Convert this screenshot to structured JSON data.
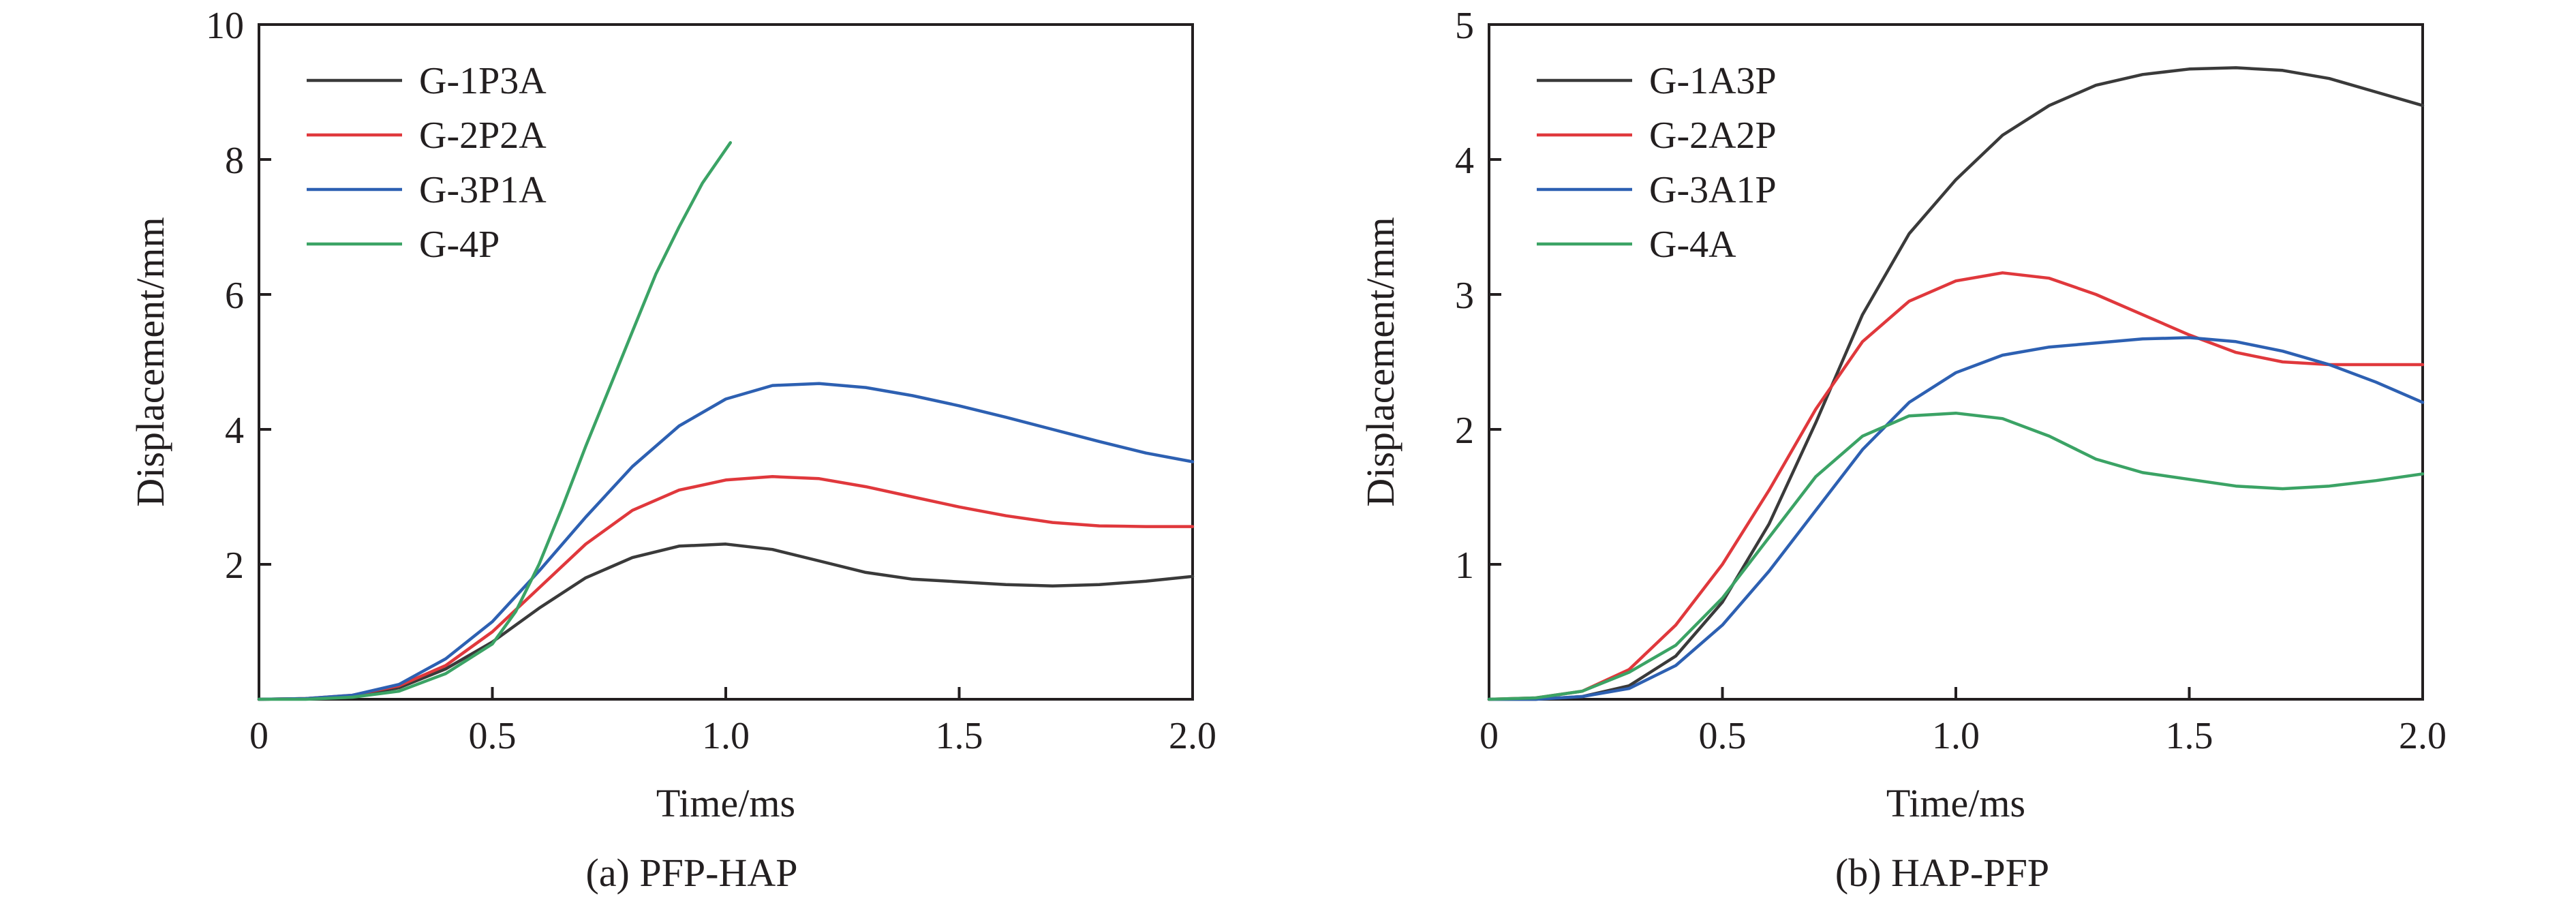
{
  "chart_data": [
    {
      "type": "line",
      "caption": "(a) PFP-HAP",
      "xlabel": "Time/ms",
      "ylabel": "Displacement/mm",
      "xlim": [
        0,
        2.0
      ],
      "ylim": [
        0,
        10
      ],
      "xticks": [
        "0",
        "0.5",
        "1.0",
        "1.5",
        "2.0"
      ],
      "yticks": [
        "2",
        "4",
        "6",
        "8",
        "10"
      ],
      "xtick_values": [
        0,
        0.5,
        1.0,
        1.5,
        2.0
      ],
      "ytick_values": [
        2,
        4,
        6,
        8,
        10
      ],
      "grid": false,
      "legend_position": "top-left",
      "series": [
        {
          "name": "G-1P3A",
          "color": "#3a3a3a",
          "x": [
            0,
            0.1,
            0.2,
            0.3,
            0.4,
            0.5,
            0.6,
            0.7,
            0.8,
            0.9,
            1.0,
            1.1,
            1.2,
            1.3,
            1.4,
            1.5,
            1.6,
            1.7,
            1.8,
            1.9,
            2.0
          ],
          "y": [
            0,
            0.01,
            0.05,
            0.17,
            0.45,
            0.85,
            1.35,
            1.8,
            2.1,
            2.27,
            2.3,
            2.22,
            2.05,
            1.88,
            1.78,
            1.74,
            1.7,
            1.68,
            1.7,
            1.75,
            1.82
          ]
        },
        {
          "name": "G-2P2A",
          "color": "#e0383c",
          "x": [
            0,
            0.1,
            0.2,
            0.3,
            0.4,
            0.5,
            0.6,
            0.7,
            0.8,
            0.9,
            1.0,
            1.1,
            1.2,
            1.3,
            1.4,
            1.5,
            1.6,
            1.7,
            1.8,
            1.9,
            2.0
          ],
          "y": [
            0,
            0.01,
            0.06,
            0.2,
            0.5,
            1.0,
            1.65,
            2.3,
            2.8,
            3.1,
            3.25,
            3.3,
            3.27,
            3.15,
            3.0,
            2.85,
            2.72,
            2.62,
            2.57,
            2.56,
            2.56
          ]
        },
        {
          "name": "G-3P1A",
          "color": "#2d60b2",
          "x": [
            0,
            0.1,
            0.2,
            0.3,
            0.4,
            0.5,
            0.6,
            0.7,
            0.8,
            0.9,
            1.0,
            1.1,
            1.2,
            1.3,
            1.4,
            1.5,
            1.6,
            1.7,
            1.8,
            1.9,
            2.0
          ],
          "y": [
            0,
            0.01,
            0.06,
            0.22,
            0.6,
            1.15,
            1.9,
            2.7,
            3.45,
            4.05,
            4.45,
            4.65,
            4.68,
            4.62,
            4.5,
            4.35,
            4.18,
            4.0,
            3.82,
            3.65,
            3.52
          ]
        },
        {
          "name": "G-4P",
          "color": "#3ba365",
          "x": [
            0,
            0.1,
            0.2,
            0.3,
            0.4,
            0.5,
            0.55,
            0.6,
            0.65,
            0.7,
            0.75,
            0.8,
            0.85,
            0.9,
            0.95,
            1.0,
            1.01
          ],
          "y": [
            0,
            0.0,
            0.03,
            0.12,
            0.38,
            0.82,
            1.3,
            2.0,
            2.85,
            3.75,
            4.6,
            5.45,
            6.3,
            7.0,
            7.65,
            8.15,
            8.25
          ]
        }
      ]
    },
    {
      "type": "line",
      "caption": "(b) HAP-PFP",
      "xlabel": "Time/ms",
      "ylabel": "Displacement/mm",
      "xlim": [
        0,
        2.0
      ],
      "ylim": [
        0,
        5
      ],
      "xticks": [
        "0",
        "0.5",
        "1.0",
        "1.5",
        "2.0"
      ],
      "yticks": [
        "1",
        "2",
        "3",
        "4",
        "5"
      ],
      "xtick_values": [
        0,
        0.5,
        1.0,
        1.5,
        2.0
      ],
      "ytick_values": [
        1,
        2,
        3,
        4,
        5
      ],
      "grid": false,
      "legend_position": "top-left",
      "series": [
        {
          "name": "G-1A3P",
          "color": "#3a3a3a",
          "x": [
            0,
            0.1,
            0.2,
            0.3,
            0.4,
            0.5,
            0.6,
            0.7,
            0.8,
            0.9,
            1.0,
            1.1,
            1.2,
            1.3,
            1.4,
            1.5,
            1.6,
            1.7,
            1.8,
            1.9,
            2.0
          ],
          "y": [
            0,
            0.0,
            0.02,
            0.1,
            0.32,
            0.72,
            1.3,
            2.05,
            2.85,
            3.45,
            3.85,
            4.18,
            4.4,
            4.55,
            4.63,
            4.67,
            4.68,
            4.66,
            4.6,
            4.5,
            4.4
          ]
        },
        {
          "name": "G-2A2P",
          "color": "#e0383c",
          "x": [
            0,
            0.1,
            0.2,
            0.3,
            0.4,
            0.5,
            0.6,
            0.7,
            0.8,
            0.9,
            1.0,
            1.1,
            1.2,
            1.3,
            1.4,
            1.5,
            1.6,
            1.7,
            1.8,
            1.9,
            2.0
          ],
          "y": [
            0,
            0.01,
            0.06,
            0.22,
            0.55,
            1.0,
            1.55,
            2.15,
            2.65,
            2.95,
            3.1,
            3.16,
            3.12,
            3.0,
            2.85,
            2.7,
            2.57,
            2.5,
            2.48,
            2.48,
            2.48
          ]
        },
        {
          "name": "G-3A1P",
          "color": "#2d60b2",
          "x": [
            0,
            0.1,
            0.2,
            0.3,
            0.4,
            0.5,
            0.6,
            0.7,
            0.8,
            0.9,
            1.0,
            1.1,
            1.2,
            1.3,
            1.4,
            1.5,
            1.6,
            1.7,
            1.8,
            1.9,
            2.0
          ],
          "y": [
            0,
            0.0,
            0.02,
            0.08,
            0.25,
            0.55,
            0.95,
            1.4,
            1.85,
            2.2,
            2.42,
            2.55,
            2.61,
            2.64,
            2.67,
            2.68,
            2.65,
            2.58,
            2.48,
            2.35,
            2.2
          ]
        },
        {
          "name": "G-4A",
          "color": "#3ba365",
          "x": [
            0,
            0.1,
            0.2,
            0.3,
            0.4,
            0.5,
            0.6,
            0.7,
            0.8,
            0.9,
            1.0,
            1.1,
            1.2,
            1.3,
            1.4,
            1.5,
            1.6,
            1.7,
            1.8,
            1.9,
            2.0
          ],
          "y": [
            0,
            0.01,
            0.06,
            0.2,
            0.4,
            0.75,
            1.2,
            1.65,
            1.95,
            2.1,
            2.12,
            2.08,
            1.95,
            1.78,
            1.68,
            1.63,
            1.58,
            1.56,
            1.58,
            1.62,
            1.67
          ]
        }
      ]
    }
  ]
}
